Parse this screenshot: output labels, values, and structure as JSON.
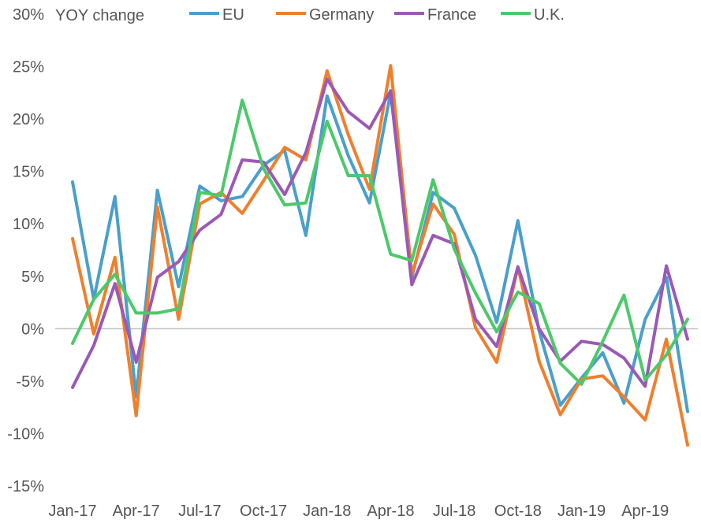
{
  "chart_data": {
    "type": "line",
    "annotation": "YOY change",
    "y_ticks": [
      "30%",
      "25%",
      "20%",
      "15%",
      "10%",
      "5%",
      "0%",
      "-5%",
      "-10%",
      "-15%"
    ],
    "y_tick_values": [
      30,
      25,
      20,
      15,
      10,
      5,
      0,
      -5,
      -10,
      -15
    ],
    "ylim": [
      -15,
      30
    ],
    "x_tick_labels": [
      "Jan-17",
      "Apr-17",
      "Jul-17",
      "Oct-17",
      "Jan-18",
      "Apr-18",
      "Jul-18",
      "Oct-18",
      "Jan-19",
      "Apr-19"
    ],
    "x": [
      "Jan-17",
      "Feb-17",
      "Mar-17",
      "Apr-17",
      "May-17",
      "Jun-17",
      "Jul-17",
      "Aug-17",
      "Sep-17",
      "Oct-17",
      "Nov-17",
      "Dec-17",
      "Jan-18",
      "Feb-18",
      "Mar-18",
      "Apr-18",
      "May-18",
      "Jun-18",
      "Jul-18",
      "Aug-18",
      "Sep-18",
      "Oct-18",
      "Nov-18",
      "Dec-18",
      "Jan-19",
      "Feb-19",
      "Mar-19",
      "Apr-19",
      "May-19",
      "Jun-19"
    ],
    "grid": false,
    "zero_line": true,
    "legend_position": "top",
    "series": [
      {
        "name": "EU",
        "color": "#4A9FCB",
        "values": [
          14.0,
          2.8,
          12.6,
          -6.5,
          13.2,
          4.0,
          13.6,
          12.2,
          12.6,
          15.6,
          17.0,
          8.9,
          22.2,
          16.5,
          12.0,
          22.5,
          4.9,
          13.0,
          11.5,
          7.0,
          0.6,
          10.3,
          -0.2,
          -7.3,
          -4.7,
          -2.3,
          -7.1,
          0.9,
          4.9,
          -7.9
        ]
      },
      {
        "name": "Germany",
        "color": "#F07F2D",
        "values": [
          8.6,
          -0.5,
          6.8,
          -8.3,
          11.6,
          0.9,
          11.9,
          13.0,
          11.0,
          14.1,
          17.3,
          16.1,
          24.6,
          18.5,
          13.3,
          25.1,
          5.2,
          11.9,
          9.0,
          0.1,
          -3.2,
          5.9,
          -3.1,
          -8.2,
          -4.8,
          -4.5,
          -6.5,
          -8.7,
          -1.0,
          -11.1
        ]
      },
      {
        "name": "France",
        "color": "#9B59B6",
        "values": [
          -5.6,
          -1.6,
          4.3,
          -3.2,
          4.9,
          6.4,
          9.4,
          10.9,
          16.1,
          15.9,
          12.8,
          16.8,
          23.8,
          20.7,
          19.1,
          22.7,
          4.2,
          8.9,
          8.1,
          0.9,
          -1.7,
          5.9,
          0.0,
          -3.1,
          -1.2,
          -1.5,
          -2.8,
          -5.5,
          6.0,
          -1.0
        ]
      },
      {
        "name": "U.K.",
        "color": "#4CC96A",
        "values": [
          -1.4,
          2.8,
          5.2,
          1.5,
          1.5,
          1.9,
          13.0,
          12.7,
          21.8,
          15.3,
          11.8,
          12.0,
          19.8,
          14.6,
          14.6,
          7.1,
          6.5,
          14.2,
          7.6,
          3.4,
          -0.3,
          3.5,
          2.4,
          -3.3,
          -5.3,
          -1.2,
          3.2,
          -4.9,
          -2.5,
          0.9
        ]
      }
    ]
  }
}
